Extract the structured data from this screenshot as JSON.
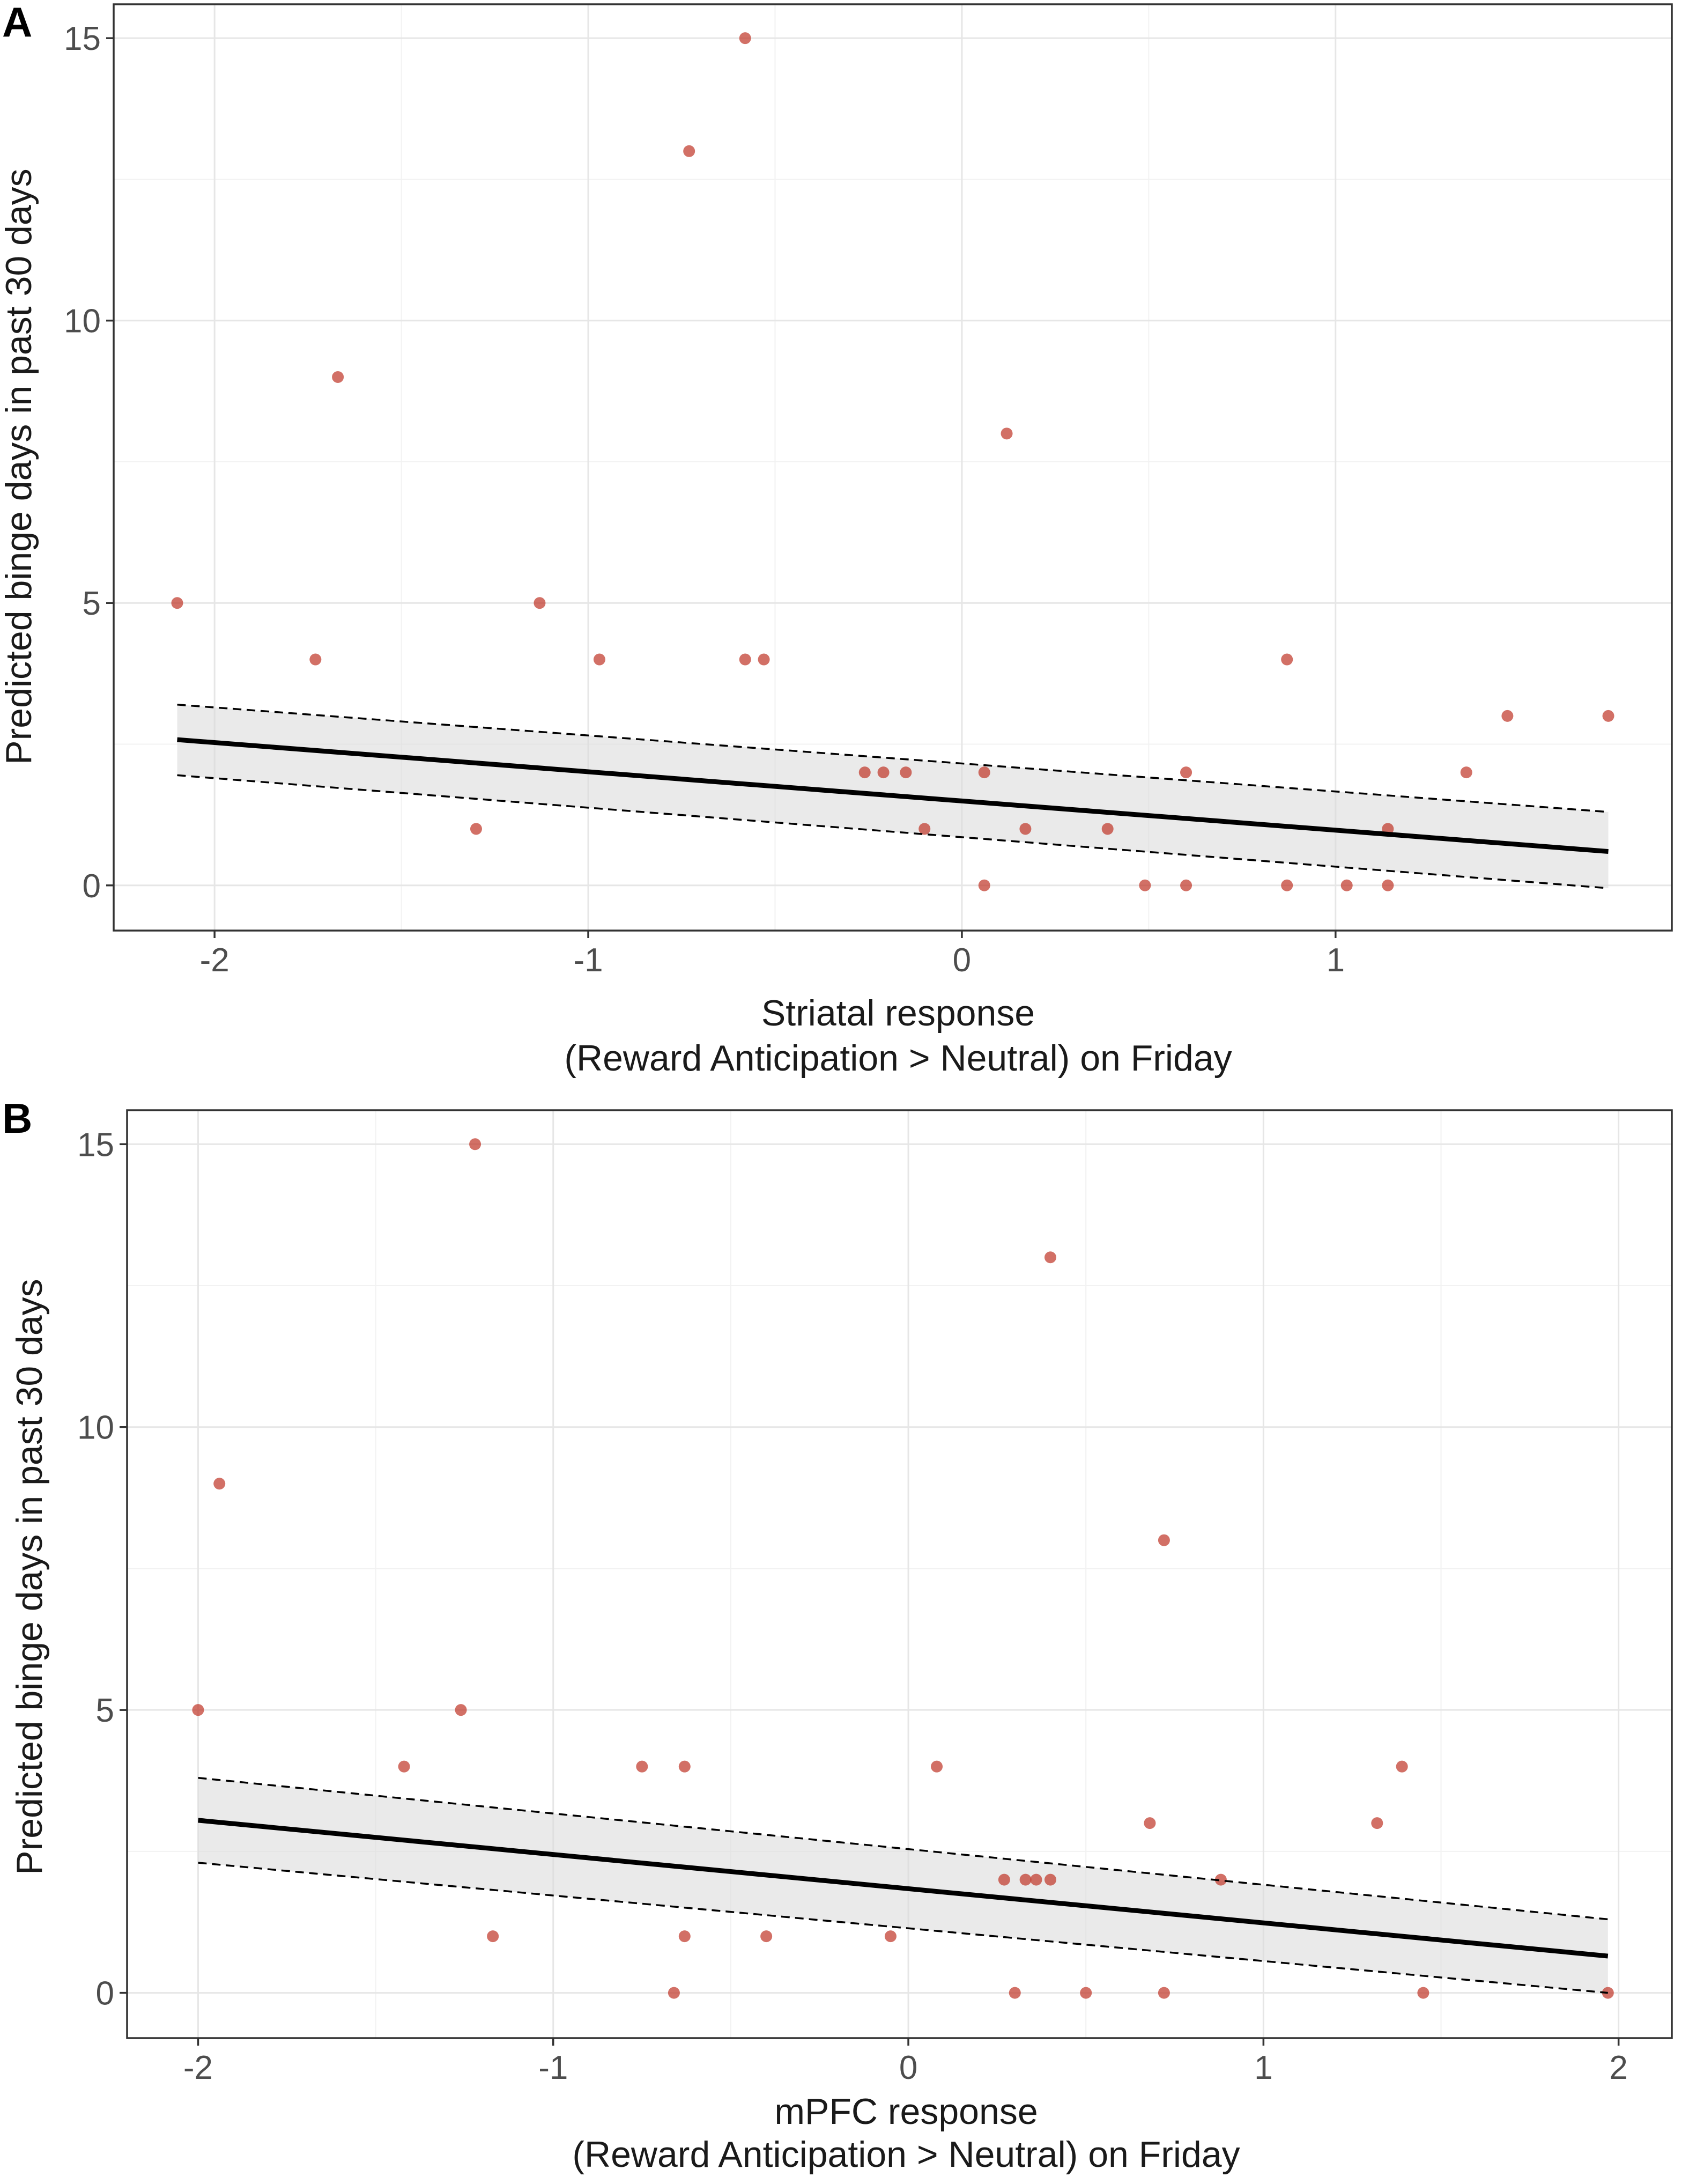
{
  "colors": {
    "point": "#c0392b",
    "band": "#d9d9d9",
    "line": "#000000"
  },
  "chart_data": [
    {
      "type": "scatter",
      "panel_label": "A",
      "title": "",
      "ylabel": "Predicted binge days in past 30 days",
      "xlabel_line1": "Striatal response",
      "xlabel_line2": "(Reward Anticipation > Neutral) on Friday",
      "xlim": [
        -2.27,
        1.9
      ],
      "ylim": [
        -0.8,
        15.6
      ],
      "x_ticks": [
        -2,
        -1,
        0,
        1
      ],
      "x_tick_labels": [
        "-2",
        "-1",
        "0",
        "1"
      ],
      "y_ticks": [
        0,
        5,
        10,
        15
      ],
      "y_tick_labels": [
        "0",
        "5",
        "10",
        "15"
      ],
      "grid": true,
      "points": [
        {
          "x": -2.1,
          "y": 5
        },
        {
          "x": -1.73,
          "y": 4
        },
        {
          "x": -1.67,
          "y": 9
        },
        {
          "x": -1.3,
          "y": 1
        },
        {
          "x": -1.13,
          "y": 5
        },
        {
          "x": -0.97,
          "y": 4
        },
        {
          "x": -0.73,
          "y": 13
        },
        {
          "x": -0.58,
          "y": 15
        },
        {
          "x": -0.58,
          "y": 4
        },
        {
          "x": -0.53,
          "y": 4
        },
        {
          "x": -0.26,
          "y": 2
        },
        {
          "x": -0.21,
          "y": 2
        },
        {
          "x": -0.15,
          "y": 2
        },
        {
          "x": -0.1,
          "y": 1
        },
        {
          "x": 0.06,
          "y": 2
        },
        {
          "x": 0.06,
          "y": 0
        },
        {
          "x": 0.12,
          "y": 8
        },
        {
          "x": 0.17,
          "y": 1
        },
        {
          "x": 0.39,
          "y": 1
        },
        {
          "x": 0.49,
          "y": 0
        },
        {
          "x": 0.6,
          "y": 2
        },
        {
          "x": 0.6,
          "y": 0
        },
        {
          "x": 0.87,
          "y": 4
        },
        {
          "x": 0.87,
          "y": 0
        },
        {
          "x": 1.03,
          "y": 0
        },
        {
          "x": 1.14,
          "y": 1
        },
        {
          "x": 1.14,
          "y": 0
        },
        {
          "x": 1.35,
          "y": 2
        },
        {
          "x": 1.46,
          "y": 3
        },
        {
          "x": 1.73,
          "y": 3
        }
      ],
      "fit": {
        "x": [
          -2.1,
          1.73
        ],
        "y": [
          2.58,
          0.6
        ]
      },
      "ci_upper": {
        "x": [
          -2.1,
          1.73
        ],
        "y": [
          3.2,
          1.3
        ]
      },
      "ci_lower": {
        "x": [
          -2.1,
          1.73
        ],
        "y": [
          1.95,
          -0.05
        ]
      }
    },
    {
      "type": "scatter",
      "panel_label": "B",
      "title": "",
      "ylabel": "Predicted binge days in past 30 days",
      "xlabel_line1": "mPFC response",
      "xlabel_line2": "(Reward Anticipation > Neutral) on Friday",
      "xlim": [
        -2.2,
        2.15
      ],
      "ylim": [
        -0.8,
        15.6
      ],
      "x_ticks": [
        -2,
        -1,
        0,
        1,
        2
      ],
      "x_tick_labels": [
        "-2",
        "-1",
        "0",
        "1",
        "2"
      ],
      "y_ticks": [
        0,
        5,
        10,
        15
      ],
      "y_tick_labels": [
        "0",
        "5",
        "10",
        "15"
      ],
      "grid": true,
      "points": [
        {
          "x": -2.0,
          "y": 5
        },
        {
          "x": -1.94,
          "y": 9
        },
        {
          "x": -1.42,
          "y": 4
        },
        {
          "x": -1.26,
          "y": 5
        },
        {
          "x": -1.22,
          "y": 15
        },
        {
          "x": -1.17,
          "y": 1
        },
        {
          "x": -0.75,
          "y": 4
        },
        {
          "x": -0.66,
          "y": 0
        },
        {
          "x": -0.63,
          "y": 4
        },
        {
          "x": -0.63,
          "y": 1
        },
        {
          "x": -0.4,
          "y": 1
        },
        {
          "x": -0.05,
          "y": 1
        },
        {
          "x": 0.08,
          "y": 4
        },
        {
          "x": 0.27,
          "y": 2
        },
        {
          "x": 0.3,
          "y": 0
        },
        {
          "x": 0.33,
          "y": 2
        },
        {
          "x": 0.36,
          "y": 2
        },
        {
          "x": 0.4,
          "y": 2
        },
        {
          "x": 0.4,
          "y": 13
        },
        {
          "x": 0.5,
          "y": 0
        },
        {
          "x": 0.68,
          "y": 3
        },
        {
          "x": 0.72,
          "y": 8
        },
        {
          "x": 0.72,
          "y": 0
        },
        {
          "x": 0.88,
          "y": 2
        },
        {
          "x": 1.32,
          "y": 3
        },
        {
          "x": 1.39,
          "y": 4
        },
        {
          "x": 1.45,
          "y": 0
        },
        {
          "x": 1.97,
          "y": 0
        }
      ],
      "fit": {
        "x": [
          -2.0,
          1.97
        ],
        "y": [
          3.05,
          0.65
        ]
      },
      "ci_upper": {
        "x": [
          -2.0,
          1.97
        ],
        "y": [
          3.8,
          1.3
        ]
      },
      "ci_lower": {
        "x": [
          -2.0,
          1.97
        ],
        "y": [
          2.3,
          0.0
        ]
      }
    }
  ]
}
